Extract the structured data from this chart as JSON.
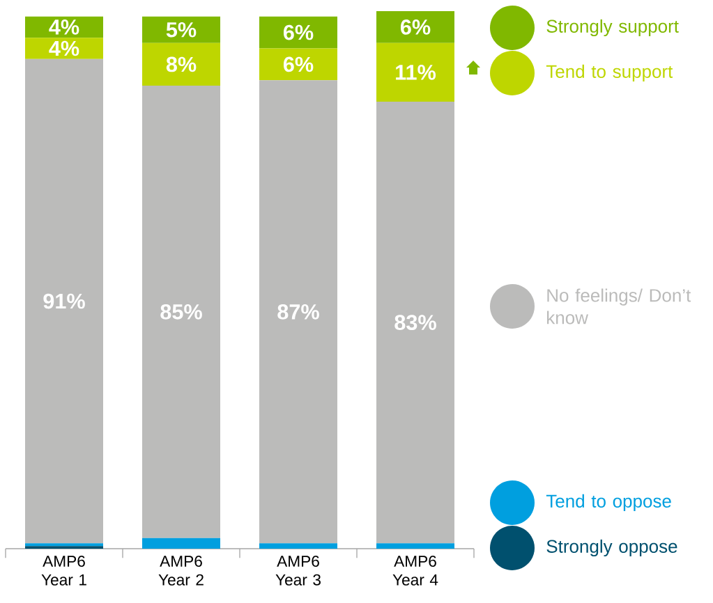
{
  "chart_data": {
    "type": "bar",
    "stacked": true,
    "legend": "right",
    "categories": [
      "AMP6 Year 1",
      "AMP6 Year 2",
      "AMP6 Year 3",
      "AMP6 Year 4"
    ],
    "series": [
      {
        "name": "Strongly oppose",
        "color": "#00506e",
        "values": [
          0.5,
          0,
          0,
          0
        ],
        "value_labels": [
          null,
          null,
          null,
          null
        ]
      },
      {
        "name": "Tend to oppose",
        "color": "#009fdf",
        "values": [
          0.5,
          2,
          1,
          1
        ],
        "value_labels": [
          null,
          null,
          null,
          null
        ]
      },
      {
        "name": "No feelings/ Don’t know",
        "color": "#bbbbba",
        "values": [
          91,
          85,
          87,
          83
        ],
        "value_labels": [
          "91%",
          "85%",
          "87%",
          "83%"
        ]
      },
      {
        "name": "Tend to support",
        "color": "#bed600",
        "values": [
          4,
          8,
          6,
          11
        ],
        "value_labels": [
          "4%",
          "8%",
          "6%",
          "11%"
        ]
      },
      {
        "name": "Strongly support",
        "color": "#80b800",
        "values": [
          4,
          5,
          6,
          6
        ],
        "value_labels": [
          "4%",
          "5%",
          "6%",
          "6%"
        ]
      }
    ]
  }
}
